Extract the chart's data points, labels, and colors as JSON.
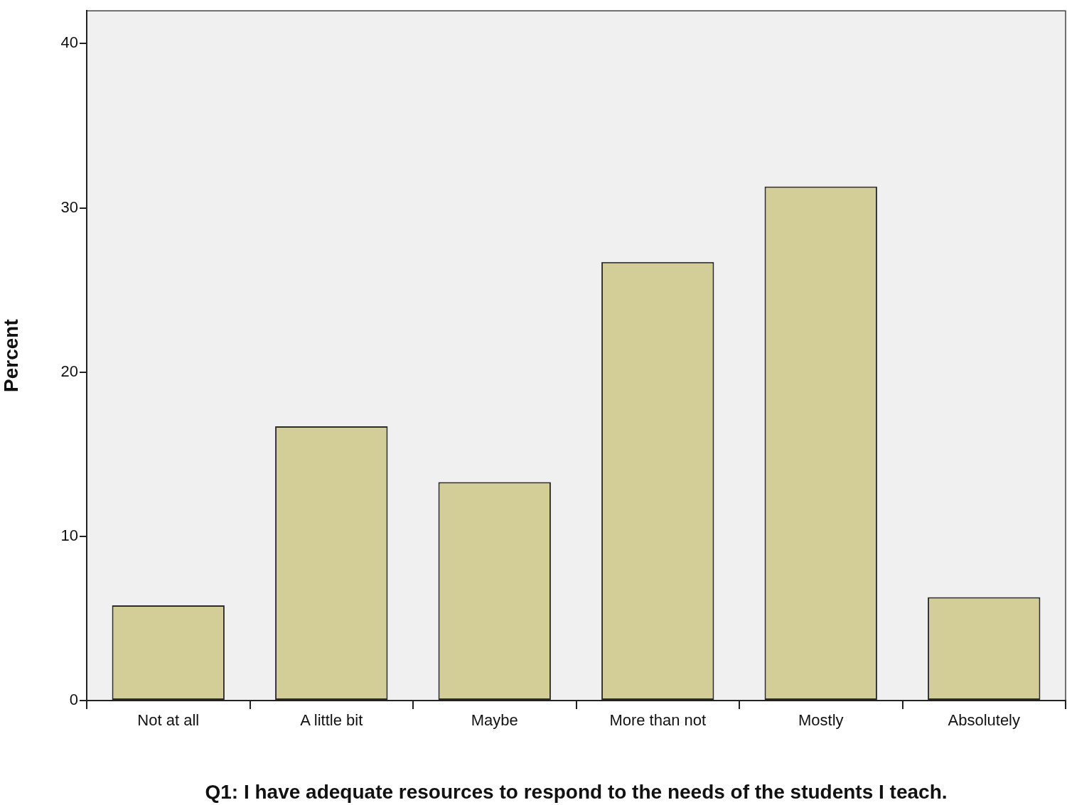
{
  "chart_data": {
    "type": "bar",
    "xlabel": "Q1: I have adequate resources to respond to the needs of the students I teach.",
    "ylabel": "Percent",
    "categories": [
      "Not at all",
      "A little bit",
      "Maybe",
      "More than not",
      "Mostly",
      "Absolutely"
    ],
    "values": [
      5.8,
      16.7,
      13.3,
      26.7,
      31.3,
      6.3
    ],
    "color": "#d3ce97",
    "ylim": [
      0,
      42
    ],
    "yticks": [
      0,
      10,
      20,
      30,
      40
    ],
    "grid": false,
    "legend": false
  }
}
